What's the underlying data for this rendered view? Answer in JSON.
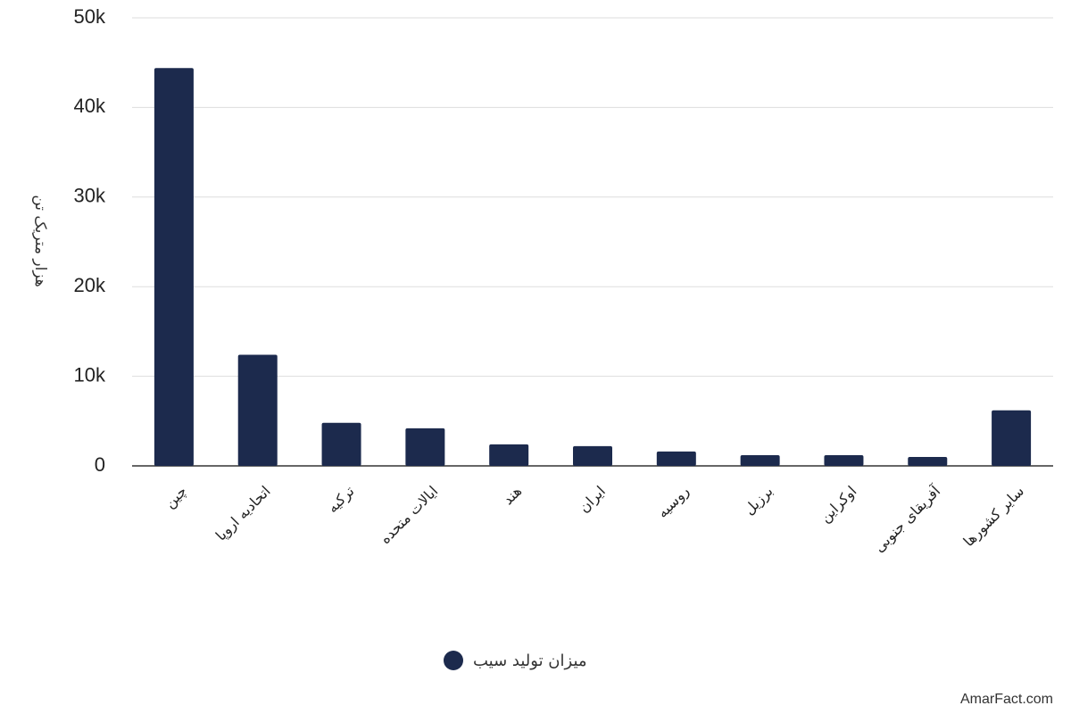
{
  "chart_data": {
    "type": "bar",
    "y_label": "هزار متریک تن",
    "categories": [
      "چین",
      "اتحادیه اروپا",
      "ترکیه",
      "ایالات متحده",
      "هند",
      "ایران",
      "روسیه",
      "برزیل",
      "اوکراین",
      "آفریقای جنوبی",
      "سایر کشورها"
    ],
    "series": [
      {
        "name": "میزان تولید سیب",
        "color": "#1c2a4d",
        "values": [
          44400,
          12400,
          4800,
          4200,
          2400,
          2200,
          1600,
          1200,
          1200,
          1000,
          6200
        ]
      }
    ],
    "ylim": [
      0,
      50000
    ],
    "yticks": [
      0,
      {
        "value": 10000,
        "label": "10k"
      },
      {
        "value": 20000,
        "label": "20k"
      },
      {
        "value": 30000,
        "label": "30k"
      },
      {
        "value": 40000,
        "label": "40k"
      },
      {
        "value": 50000,
        "label": "50k"
      }
    ],
    "grid": true,
    "watermark": "AmarFact.com"
  }
}
